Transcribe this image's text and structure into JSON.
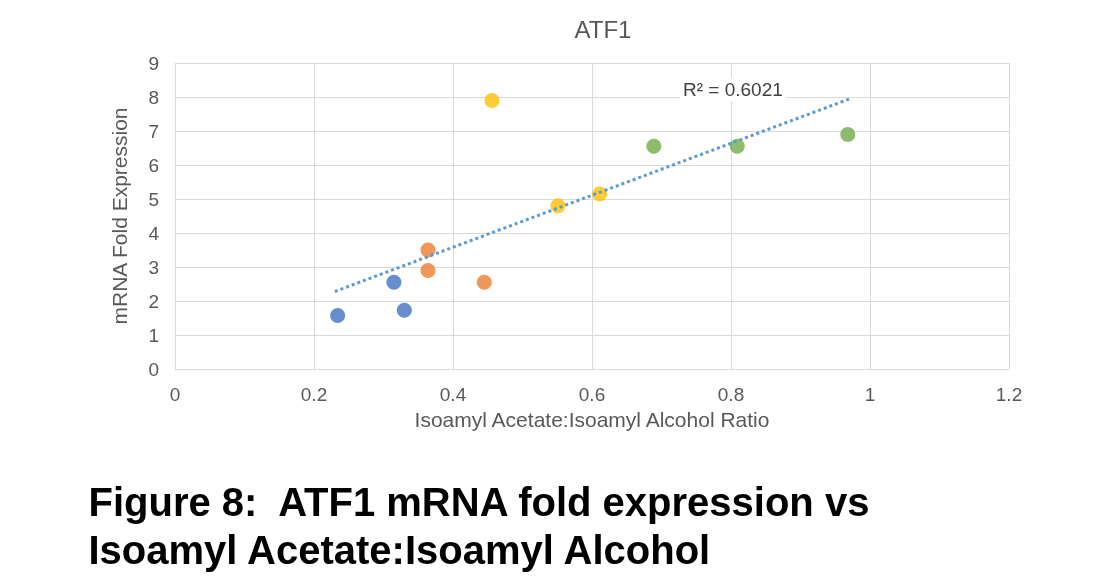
{
  "chart_data": {
    "type": "scatter",
    "title": "ATF1",
    "xlabel": "Isoamyl Acetate:Isoamyl Alcohol Ratio",
    "ylabel": "mRNA Fold Expression",
    "annotations": [
      "R² = 0.6021",
      "Figure 8:  ATF1 mRNA fold expression vs Isoamyl Acetate:Isoamyl Alcohol"
    ],
    "xlim": [
      0,
      1.2
    ],
    "xticks": [
      0,
      0.2,
      0.4,
      0.6,
      0.8,
      1,
      1.2
    ],
    "ylim": [
      0,
      9
    ],
    "yticks": [
      0,
      1,
      2,
      3,
      4,
      5,
      6,
      7,
      8,
      9
    ],
    "grid": true,
    "marker": "circle",
    "series": [
      {
        "color": "#4472c4",
        "x": [
          0.234,
          0.315,
          0.33
        ],
        "values": [
          1.57,
          2.55,
          1.73
        ]
      },
      {
        "color": "#ed7d31",
        "x": [
          0.364,
          0.364,
          0.445
        ],
        "values": [
          3.5,
          2.9,
          2.55
        ]
      },
      {
        "color": "#ffc000",
        "x": [
          0.456,
          0.551,
          0.611
        ],
        "values": [
          7.9,
          4.8,
          5.15
        ]
      },
      {
        "color": "#70ad47",
        "x": [
          0.689,
          0.809,
          0.968
        ],
        "values": [
          6.55,
          6.55,
          6.9
        ]
      },
      {
        "type": "line",
        "color": "#5b9bd5",
        "line_style": "dotted",
        "marker": "none",
        "x": [
          0.23,
          0.97
        ],
        "values": [
          2.28,
          7.94
        ]
      }
    ]
  }
}
